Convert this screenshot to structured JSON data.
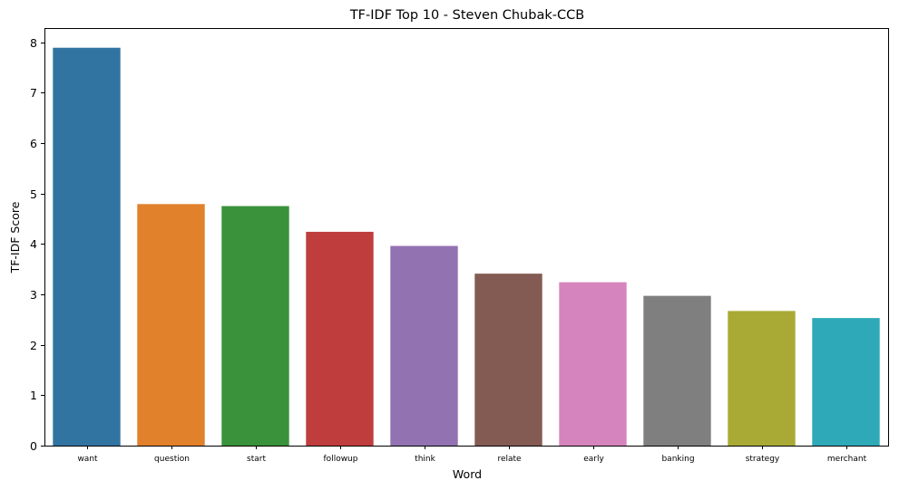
{
  "chart_data": {
    "type": "bar",
    "title": "TF-IDF Top 10 - Steven Chubak-CCB",
    "xlabel": "Word",
    "ylabel": "TF-IDF Score",
    "categories": [
      "want",
      "question",
      "start",
      "followup",
      "think",
      "relate",
      "early",
      "banking",
      "strategy",
      "merchant"
    ],
    "values": [
      7.89,
      4.79,
      4.75,
      4.24,
      3.96,
      3.41,
      3.24,
      2.97,
      2.67,
      2.53
    ],
    "colors": [
      "#3274a1",
      "#e1812c",
      "#3a923a",
      "#c03d3e",
      "#9372b2",
      "#845b53",
      "#d684bd",
      "#7f7f7f",
      "#a9aa35",
      "#2ea9b8"
    ],
    "ylim": [
      0,
      8.28
    ],
    "yticks": [
      0,
      1,
      2,
      3,
      4,
      5,
      6,
      7,
      8
    ],
    "grid": false,
    "legend": "none"
  }
}
